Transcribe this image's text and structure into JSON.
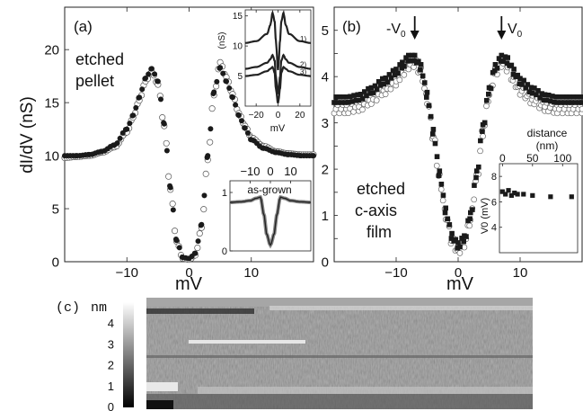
{
  "chart_data": [
    {
      "panel": "(a)",
      "type": "scatter",
      "annotation_lines": [
        "etched",
        "pellet"
      ],
      "xlabel": "mV",
      "ylabel": "dI/dV (nS)",
      "xlim": [
        -20,
        20
      ],
      "ylim": [
        0,
        24
      ],
      "x_ticks": [
        -10,
        0,
        10
      ],
      "y_ticks": [
        0,
        5,
        10,
        15,
        20
      ],
      "series": [
        {
          "marker": "filled-circle",
          "x": [
            -20,
            -18,
            -16,
            -14,
            -12,
            -10,
            -9,
            -8,
            -7,
            -6,
            -5,
            -4,
            -3,
            -2,
            -1,
            0,
            1,
            2,
            3,
            4,
            5,
            6,
            7,
            8,
            9,
            10,
            12,
            14,
            16,
            18,
            20
          ],
          "y": [
            10.0,
            10.0,
            10.1,
            10.4,
            11.0,
            12.5,
            13.8,
            15.5,
            17.3,
            18.2,
            17.0,
            13.0,
            7.0,
            2.0,
            0.4,
            0.3,
            0.8,
            3.5,
            10.0,
            16.0,
            18.3,
            17.0,
            15.5,
            13.8,
            12.6,
            11.5,
            10.7,
            10.3,
            10.1,
            10.0,
            10.0
          ]
        },
        {
          "marker": "open-circle",
          "x": [
            -20,
            -18,
            -16,
            -14,
            -12,
            -10,
            -9,
            -8,
            -7,
            -6,
            -5,
            -4,
            -3,
            -2,
            -1,
            0,
            1,
            2,
            3,
            4,
            5,
            6,
            7,
            8,
            9,
            10,
            12,
            14,
            16,
            18,
            20
          ],
          "y": [
            9.8,
            9.9,
            10.0,
            10.3,
            10.8,
            12.2,
            13.6,
            15.2,
            17.0,
            17.9,
            16.7,
            12.8,
            6.8,
            1.9,
            0.3,
            0.2,
            0.6,
            3.2,
            9.6,
            15.7,
            18.8,
            17.4,
            15.8,
            14.0,
            12.8,
            11.7,
            10.9,
            10.4,
            10.2,
            10.1,
            10.1
          ]
        }
      ],
      "insets": [
        {
          "type": "line",
          "xlabel": "mV",
          "ylabel": "(nS)",
          "xlim": [
            -30,
            30
          ],
          "ylim": [
            0,
            16
          ],
          "x_ticks": [
            -20,
            0,
            20
          ],
          "y_ticks": [
            5,
            10,
            15
          ],
          "series": [
            {
              "name": "1)",
              "x": [
                -30,
                -20,
                -10,
                -7,
                -5,
                -3,
                -2,
                0,
                2,
                3,
                5,
                7,
                10,
                20,
                30
              ],
              "y": [
                10.5,
                10.8,
                12,
                13.5,
                15.5,
                14,
                11,
                6,
                11,
                14,
                15.5,
                13.5,
                12,
                10.8,
                10.5
              ]
            },
            {
              "name": "2)",
              "x": [
                -30,
                -20,
                -10,
                -7,
                -5,
                -3,
                -2,
                0,
                2,
                3,
                5,
                7,
                10,
                20,
                30
              ],
              "y": [
                6.2,
                6.5,
                7.2,
                7.8,
                8.5,
                7.5,
                5,
                2,
                5,
                7.5,
                8.5,
                7.8,
                7.2,
                6.5,
                6.2
              ]
            },
            {
              "name": "3)",
              "x": [
                -30,
                -20,
                -10,
                -7,
                -5,
                -3,
                -2,
                0,
                2,
                3,
                5,
                7,
                10,
                20,
                30
              ],
              "y": [
                5.0,
                5.2,
                5.8,
                6.2,
                6.5,
                5.5,
                3,
                0.5,
                3,
                5.5,
                6.5,
                6.2,
                5.8,
                5.2,
                5.0
              ]
            }
          ]
        },
        {
          "type": "line",
          "title": "as-grown",
          "xlim": [
            -20,
            20
          ],
          "ylim": [
            0,
            1.2
          ],
          "x_ticks": [
            -10,
            0,
            10
          ],
          "y_ticks": [
            0,
            1
          ],
          "series": [
            {
              "x": [
                -20,
                -15,
                -10,
                -7,
                -5,
                -3,
                -2,
                0,
                2,
                3,
                5,
                7,
                10,
                15,
                20
              ],
              "y": [
                0.83,
                0.84,
                0.86,
                0.9,
                0.92,
                0.6,
                0.3,
                0.1,
                0.3,
                0.6,
                0.92,
                0.9,
                0.86,
                0.84,
                0.83
              ]
            }
          ]
        }
      ]
    },
    {
      "panel": "(b)",
      "type": "scatter",
      "annotation_lines": [
        "etched",
        "c-axis",
        "film"
      ],
      "xlabel": "mV",
      "xlim": [
        -20,
        20
      ],
      "ylim": [
        0,
        5.5
      ],
      "x_ticks": [
        -10,
        0,
        10
      ],
      "y_ticks": [
        0,
        0.5,
        1,
        1.5,
        2,
        2.5,
        3,
        3.5,
        4,
        4.5,
        5
      ],
      "arrow_labels": {
        "left": "-V",
        "right": "V",
        "subscript": "0"
      },
      "arrows_x": [
        -7,
        7
      ],
      "series": [
        {
          "marker": "filled-square",
          "x": [
            -20,
            -18,
            -16,
            -14,
            -12,
            -10,
            -9,
            -8,
            -7,
            -6,
            -5,
            -4,
            -3,
            -2,
            -1,
            0,
            1,
            2,
            3,
            4,
            5,
            6,
            7,
            8,
            9,
            10,
            12,
            14,
            16,
            18,
            20
          ],
          "y": [
            3.5,
            3.5,
            3.55,
            3.7,
            3.9,
            4.1,
            4.25,
            4.4,
            4.4,
            4.2,
            3.6,
            2.8,
            1.9,
            1.1,
            0.55,
            0.35,
            0.5,
            1.0,
            1.9,
            2.9,
            3.7,
            4.2,
            4.4,
            4.35,
            4.1,
            3.9,
            3.7,
            3.55,
            3.5,
            3.5,
            3.5
          ]
        },
        {
          "marker": "open-circle",
          "x": [
            -20,
            -18,
            -16,
            -14,
            -12,
            -10,
            -9,
            -8,
            -7,
            -6,
            -5,
            -4,
            -3,
            -2,
            -1,
            0,
            1,
            2,
            3,
            4,
            5,
            6,
            7,
            8,
            9,
            10,
            12,
            14,
            16,
            18,
            20
          ],
          "y": [
            3.3,
            3.3,
            3.35,
            3.5,
            3.7,
            3.9,
            4.1,
            4.25,
            4.3,
            4.1,
            3.5,
            2.7,
            1.8,
            1.0,
            0.45,
            0.25,
            0.4,
            0.9,
            1.8,
            2.8,
            3.6,
            4.1,
            4.3,
            4.2,
            3.9,
            3.7,
            3.5,
            3.35,
            3.3,
            3.3,
            3.3
          ]
        }
      ],
      "inset": {
        "type": "scatter",
        "title_lines": [
          "distance",
          "(nm)"
        ],
        "ylabel": "V0 (mV)",
        "xlim": [
          -5,
          125
        ],
        "ylim": [
          2,
          9
        ],
        "x_ticks": [
          0,
          50,
          100
        ],
        "y_ticks": [
          4,
          6,
          8
        ],
        "x": [
          0,
          5,
          10,
          15,
          20,
          25,
          35,
          50,
          80,
          115
        ],
        "y": [
          6.8,
          6.6,
          6.9,
          6.5,
          6.7,
          6.6,
          6.6,
          6.5,
          6.4,
          6.4
        ]
      }
    },
    {
      "panel": "(c)",
      "type": "heatmap",
      "colorbar_label": "nm",
      "colorbar_ticks": [
        0,
        1,
        2,
        3,
        4
      ],
      "colorbar_range": [
        0,
        5
      ]
    }
  ]
}
